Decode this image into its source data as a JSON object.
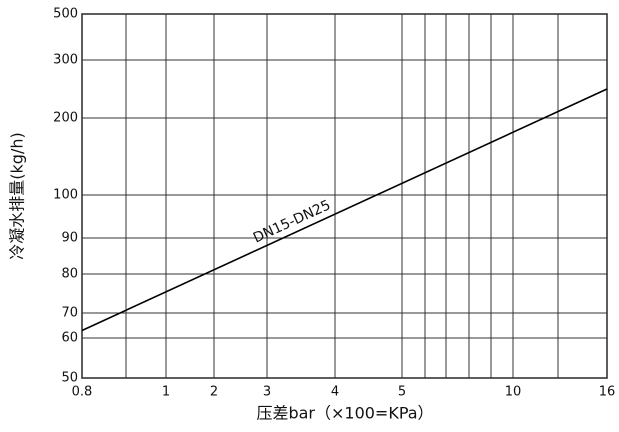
{
  "chart_data": {
    "type": "line",
    "x_label": "压差bar（×100=KPa）",
    "y_label": "冷凝水排量(kg/h)",
    "xlim": [
      0.8,
      16
    ],
    "ylim": [
      50,
      500
    ],
    "xticks": [
      0.8,
      1,
      2,
      3,
      4,
      5,
      10,
      16
    ],
    "yticks": [
      50,
      60,
      70,
      80,
      90,
      100,
      200,
      300,
      500
    ],
    "grid": true,
    "series": [
      {
        "name": "DN15-DN25",
        "color": "#000000",
        "x": [
          0.8,
          16
        ],
        "values": [
          63,
          250
        ]
      }
    ]
  }
}
